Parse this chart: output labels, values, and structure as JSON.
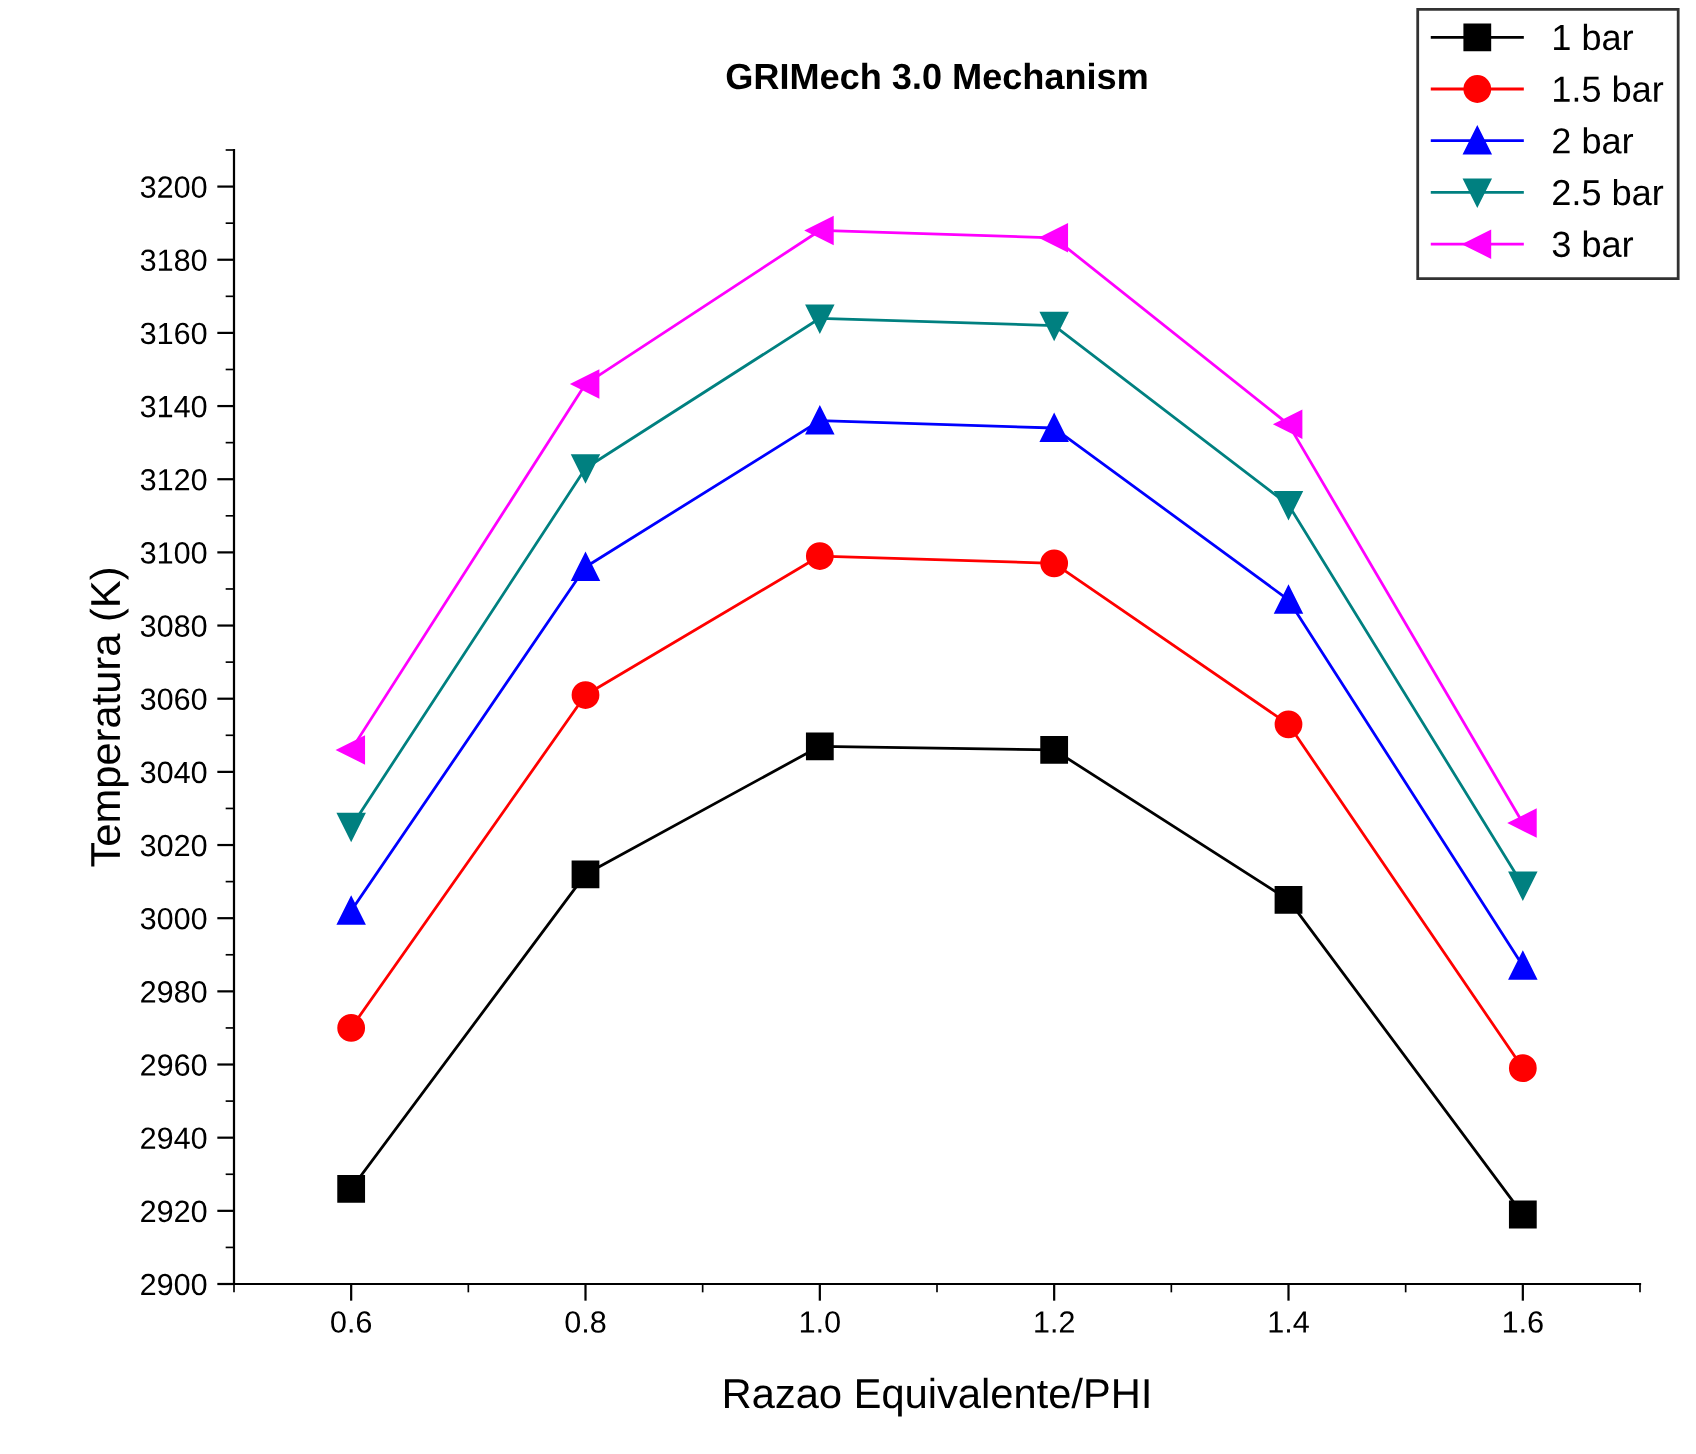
{
  "chart_data": {
    "type": "line",
    "title": "GRIMech 3.0 Mechanism",
    "xlabel": "Razao Equivalente/PHI",
    "ylabel": "Temperatura (K)",
    "x": [
      0.6,
      0.8,
      1.0,
      1.2,
      1.4,
      1.6
    ],
    "series": [
      {
        "name": "1 bar",
        "color": "#000000",
        "marker": "square",
        "values": [
          2926,
          3012,
          3047,
          3046,
          3005,
          2919
        ]
      },
      {
        "name": "1.5 bar",
        "color": "#ff0000",
        "marker": "circle",
        "values": [
          2970,
          3061,
          3099,
          3097,
          3053,
          2959
        ]
      },
      {
        "name": "2 bar",
        "color": "#0000ff",
        "marker": "triangle",
        "values": [
          3002,
          3096,
          3136,
          3134,
          3087,
          2987
        ]
      },
      {
        "name": "2.5 bar",
        "color": "#008080",
        "marker": "triangle_down",
        "values": [
          3025,
          3123,
          3164,
          3162,
          3113,
          3009
        ]
      },
      {
        "name": "3 bar",
        "color": "#ff00ff",
        "marker": "triangle_left",
        "values": [
          3046,
          3146,
          3188,
          3186,
          3135,
          3026
        ]
      }
    ],
    "xlim": [
      0.5,
      1.7
    ],
    "xticks": [
      {
        "value": 0.6,
        "label": "0.6"
      },
      {
        "value": 0.8,
        "label": "0.8"
      },
      {
        "value": 1.0,
        "label": "1.0"
      },
      {
        "value": 1.2,
        "label": "1.2"
      },
      {
        "value": 1.4,
        "label": "1.4"
      },
      {
        "value": 1.6,
        "label": "1.6"
      }
    ],
    "ylim": [
      2900,
      3210
    ],
    "yticks": [
      2900,
      2920,
      2940,
      2960,
      2980,
      3000,
      3020,
      3040,
      3060,
      3080,
      3100,
      3120,
      3140,
      3160,
      3180,
      3200
    ],
    "grid": false,
    "legend": "top right",
    "line_style": "solid"
  }
}
